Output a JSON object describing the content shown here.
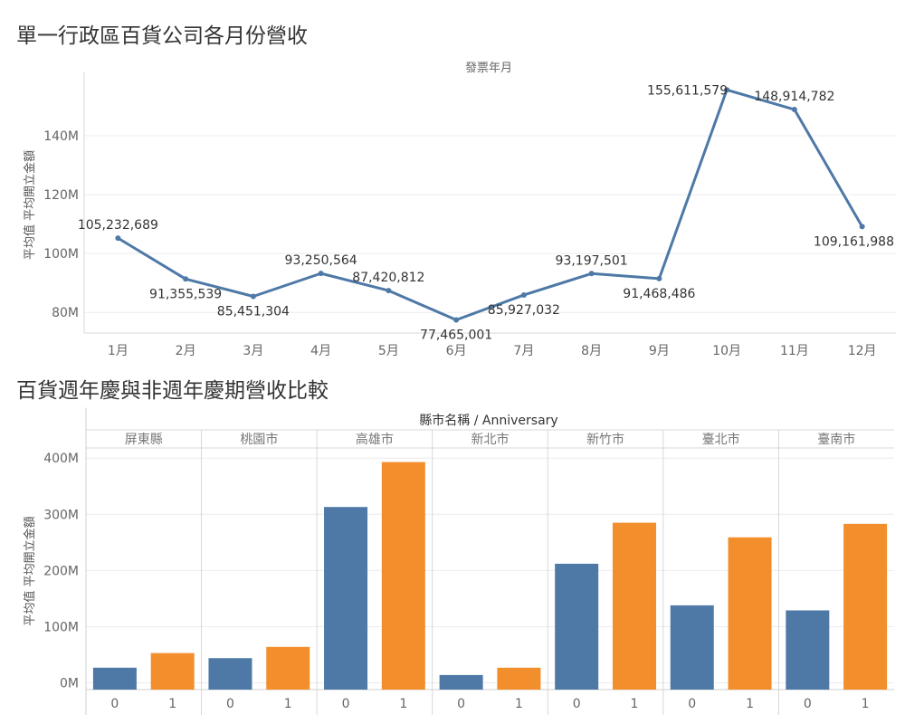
{
  "charts": {
    "monthly": {
      "title": "單一行政區百貨公司各月份營收"
    },
    "anniversary": {
      "title": "百貨週年慶與非週年慶期營收比較"
    }
  },
  "chart_data": [
    {
      "type": "line",
      "title": "單一行政區百貨公司各月份營收",
      "column_header": "發票年月",
      "ylabel": "平均值 平均開立金額",
      "categories": [
        "1月",
        "2月",
        "3月",
        "4月",
        "5月",
        "6月",
        "7月",
        "8月",
        "9月",
        "10月",
        "11月",
        "12月"
      ],
      "values": [
        105232689,
        91355539,
        85451304,
        93250564,
        87420812,
        77465001,
        85927032,
        93197501,
        91468486,
        155611579,
        148914782,
        109161988
      ],
      "data_labels": [
        "105,232,689",
        "91,355,539",
        "85,451,304",
        "93,250,564",
        "87,420,812",
        "77,465,001",
        "85,927,032",
        "93,197,501",
        "91,468,486",
        "155,611,579",
        "148,914,782",
        "109,161,988"
      ],
      "yticks": [
        80000000,
        100000000,
        120000000,
        140000000
      ],
      "ytick_labels": [
        "80M",
        "100M",
        "120M",
        "140M"
      ],
      "ylim": [
        73000000,
        160000000
      ],
      "color": "#4e79a7",
      "grid": true
    },
    {
      "type": "bar",
      "title": "百貨週年慶與非週年慶期營收比較",
      "column_header": "縣市名稱 / Anniversary",
      "ylabel": "平均值 平均開立金額",
      "regions": [
        "屏東縣",
        "桃園市",
        "高雄市",
        "新北市",
        "新竹市",
        "臺北市",
        "臺南市"
      ],
      "subcategories": [
        "0",
        "1"
      ],
      "values": [
        [
          27000000,
          53000000
        ],
        [
          44000000,
          64000000
        ],
        [
          313000000,
          393000000
        ],
        [
          14000000,
          27000000
        ],
        [
          212000000,
          285000000
        ],
        [
          138000000,
          259000000
        ],
        [
          129000000,
          283000000
        ]
      ],
      "colors": [
        "#4e79a7",
        "#f28e2b"
      ],
      "yticks": [
        0,
        100000000,
        200000000,
        300000000,
        400000000
      ],
      "ytick_labels": [
        "0M",
        "100M",
        "200M",
        "300M",
        "400M"
      ],
      "ylim": [
        -12000000,
        410000000
      ],
      "grid": true
    }
  ]
}
